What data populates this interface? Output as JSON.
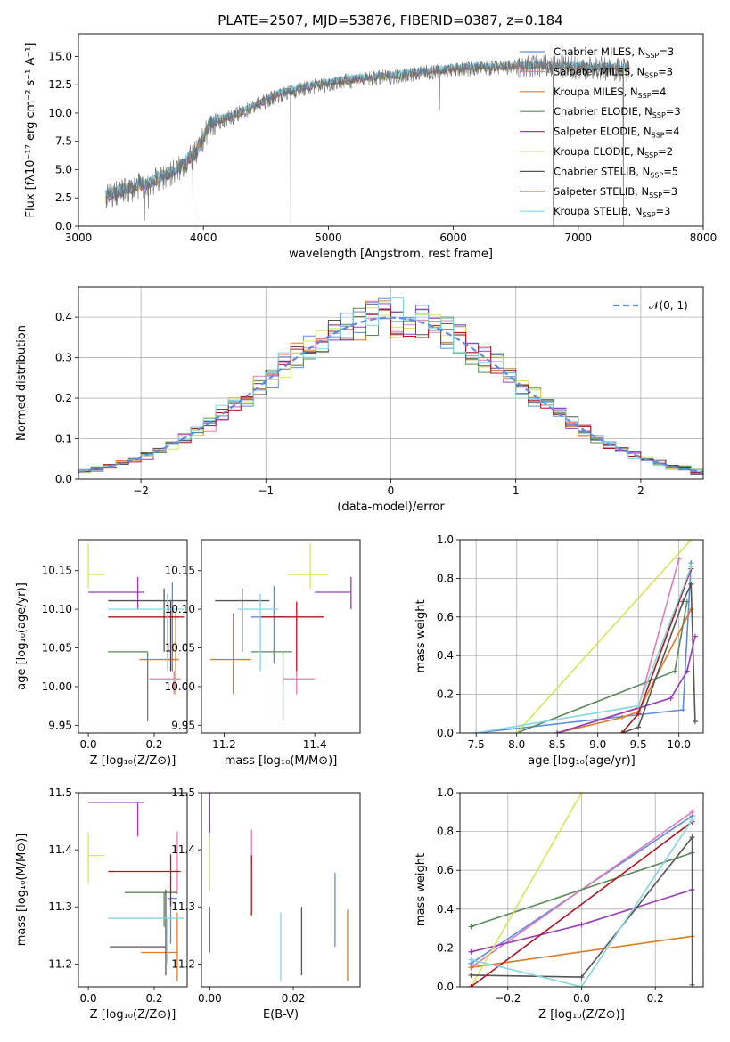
{
  "figure_title": "PLATE=2507, MJD=53876, FIBERID=0387, z=0.184",
  "colors": {
    "Chabrier MILES": "#5b8ee0",
    "Salpeter MILES": "#e37bb8",
    "Kroupa MILES": "#e07b25",
    "Chabrier ELODIE": "#5a8a5a",
    "Salpeter ELODIE": "#9b3bb8",
    "Kroupa ELODIE": "#d4e65a",
    "Chabrier STELIB": "#555555",
    "Salpeter STELIB": "#b0161d",
    "Kroupa STELIB": "#84d6e0"
  },
  "chart_data": [
    {
      "id": "spectrum",
      "type": "line",
      "title": "PLATE=2507, MJD=53876, FIBERID=0387, z=0.184",
      "xlabel": "wavelength [Angstrom, rest frame]",
      "ylabel": "Flux [fλ10⁻¹⁷ erg cm⁻² s⁻¹ A⁻¹]",
      "xlim": [
        3000,
        8000
      ],
      "ylim": [
        0,
        17
      ],
      "xticks": [
        "3000",
        "4000",
        "5000",
        "6000",
        "7000",
        "8000"
      ],
      "yticks": [
        "0.0",
        "2.5",
        "5.0",
        "7.5",
        "10.0",
        "12.5",
        "15.0"
      ],
      "legend": [
        "Chabrier MILES, N_SSP=3",
        "Salpeter MILES, N_SSP=3",
        "Kroupa MILES, N_SSP=4",
        "Chabrier ELODIE, N_SSP=3",
        "Salpeter ELODIE, N_SSP=4",
        "Kroupa ELODIE, N_SSP=2",
        "Chabrier STELIB, N_SSP=5",
        "Salpeter STELIB, N_SSP=3",
        "Kroupa STELIB, N_SSP=3"
      ],
      "legend_items": [
        {
          "model": "Chabrier MILES",
          "label": "Chabrier MILES, N",
          "nssp": "=3"
        },
        {
          "model": "Salpeter MILES",
          "label": "Salpeter MILES, N",
          "nssp": "=3"
        },
        {
          "model": "Kroupa MILES",
          "label": "Kroupa MILES, N",
          "nssp": "=4"
        },
        {
          "model": "Chabrier ELODIE",
          "label": "Chabrier ELODIE, N",
          "nssp": "=3"
        },
        {
          "model": "Salpeter ELODIE",
          "label": "Salpeter ELODIE, N",
          "nssp": "=4"
        },
        {
          "model": "Kroupa ELODIE",
          "label": "Kroupa ELODIE, N",
          "nssp": "=2"
        },
        {
          "model": "Chabrier STELIB",
          "label": "Chabrier STELIB, N",
          "nssp": "=5"
        },
        {
          "model": "Salpeter STELIB",
          "label": "Salpeter STELIB, N",
          "nssp": "=3"
        },
        {
          "model": "Kroupa STELIB",
          "label": "Kroupa STELIB, N",
          "nssp": "=3"
        }
      ],
      "legend_sub": "SSP",
      "legend_placement": "right",
      "continuum": [
        [
          3220,
          2.6
        ],
        [
          3400,
          3.2
        ],
        [
          3600,
          3.9
        ],
        [
          3800,
          5.0
        ],
        [
          3950,
          6.5
        ],
        [
          4050,
          8.9
        ],
        [
          4300,
          10.0
        ],
        [
          4600,
          11.6
        ],
        [
          4900,
          12.4
        ],
        [
          5200,
          12.9
        ],
        [
          5500,
          13.2
        ],
        [
          5800,
          13.6
        ],
        [
          6100,
          13.9
        ],
        [
          6400,
          14.0
        ],
        [
          6700,
          14.1
        ],
        [
          7000,
          14.0
        ],
        [
          7300,
          13.9
        ],
        [
          7410,
          13.8
        ]
      ],
      "data_x_range": [
        3220,
        7410
      ],
      "dips": [
        [
          3530,
          0.5
        ],
        [
          3560,
          1.5
        ],
        [
          3915,
          0.2
        ],
        [
          4700,
          0.4
        ],
        [
          5890,
          10.3
        ],
        [
          6800,
          0.0
        ],
        [
          7360,
          0.0
        ]
      ]
    },
    {
      "id": "residuals",
      "type": "bar",
      "xlabel": "(data-model)/error",
      "ylabel": "Normed distribution",
      "xlim": [
        -2.5,
        2.5
      ],
      "ylim": [
        0,
        0.475
      ],
      "xticks": [
        "−2",
        "−1",
        "0",
        "1",
        "2"
      ],
      "yticks": [
        "0.0",
        "0.1",
        "0.2",
        "0.3",
        "0.4"
      ],
      "grid": true,
      "bin_width": 0.1,
      "reference_curve": "normal(0,1)",
      "legend": [
        "𝒩(0, 1)"
      ],
      "legend_placement": "top-right"
    },
    {
      "id": "age-vs-Z",
      "type": "scatter",
      "xlabel": "Z [log₁₀(Z/Z⊙)]",
      "ylabel": "age  [log₁₀(age/yr)]",
      "xlim": [
        -0.03,
        0.3
      ],
      "ylim": [
        9.94,
        10.19
      ],
      "xticks": [
        "0.0",
        "0.2"
      ],
      "yticks": [
        "9.95",
        "10.00",
        "10.05",
        "10.10",
        "10.15"
      ],
      "points": [
        {
          "model": "Chabrier MILES",
          "x": 0.255,
          "xerr": [
            0.0,
            0.0
          ],
          "y": 10.1,
          "yerr": [
            0.08,
            0.035
          ]
        },
        {
          "model": "Salpeter MILES",
          "x": 0.26,
          "xerr": [
            0.075,
            0.02
          ],
          "y": 10.01,
          "yerr": [
            0.02,
            0.01
          ]
        },
        {
          "model": "Kroupa MILES",
          "x": 0.265,
          "xerr": [
            0.11,
            0.01
          ],
          "y": 10.035,
          "yerr": [
            0.045,
            0.06
          ]
        },
        {
          "model": "Chabrier ELODIE",
          "x": 0.18,
          "xerr": [
            0.12,
            0.0
          ],
          "y": 10.045,
          "yerr": [
            0.09,
            0.0
          ]
        },
        {
          "model": "Salpeter ELODIE",
          "x": 0.15,
          "xerr": [
            0.15,
            0.02
          ],
          "y": 10.122,
          "yerr": [
            0.022,
            0.02
          ]
        },
        {
          "model": "Kroupa ELODIE",
          "x": 0.0,
          "xerr": [
            0.0,
            0.05
          ],
          "y": 10.145,
          "yerr": [
            0.018,
            0.04
          ]
        },
        {
          "model": "Chabrier STELIB",
          "x": 0.23,
          "xerr": [
            0.17,
            0.07
          ],
          "y": 10.111,
          "yerr": [
            0.066,
            0.016
          ]
        },
        {
          "model": "Salpeter STELIB",
          "x": 0.25,
          "xerr": [
            0.19,
            0.04
          ],
          "y": 10.09,
          "yerr": [
            0.07,
            0.02
          ]
        },
        {
          "model": "Kroupa STELIB",
          "x": 0.24,
          "xerr": [
            0.18,
            0.05
          ],
          "y": 10.1,
          "yerr": [
            0.08,
            0.02
          ]
        }
      ]
    },
    {
      "id": "age-vs-mass",
      "type": "scatter",
      "xlabel": "mass [log₁₀(M/M⊙)]",
      "ylabel": "",
      "xlim": [
        11.15,
        11.5
      ],
      "ylim": [
        9.94,
        10.19
      ],
      "xticks": [
        "11.2",
        "11.4"
      ],
      "yticks": [
        "9.95",
        "10.00",
        "10.05",
        "10.10",
        "10.15"
      ],
      "points": [
        {
          "model": "Chabrier MILES",
          "x": 11.31,
          "xerr": [
            0.05,
            0.03
          ],
          "y": 10.09,
          "yerr": [
            0.06,
            0.04
          ]
        },
        {
          "model": "Salpeter MILES",
          "x": 11.36,
          "xerr": [
            0.03,
            0.04
          ],
          "y": 10.01,
          "yerr": [
            0.02,
            0.01
          ]
        },
        {
          "model": "Kroupa MILES",
          "x": 11.22,
          "xerr": [
            0.05,
            0.04
          ],
          "y": 10.035,
          "yerr": [
            0.045,
            0.06
          ]
        },
        {
          "model": "Chabrier ELODIE",
          "x": 11.33,
          "xerr": [
            0.07,
            0.02
          ],
          "y": 10.045,
          "yerr": [
            0.09,
            0.0
          ]
        },
        {
          "model": "Salpeter ELODIE",
          "x": 11.48,
          "xerr": [
            0.08,
            0.0
          ],
          "y": 10.122,
          "yerr": [
            0.022,
            0.02
          ]
        },
        {
          "model": "Kroupa ELODIE",
          "x": 11.39,
          "xerr": [
            0.05,
            0.04
          ],
          "y": 10.145,
          "yerr": [
            0.018,
            0.04
          ]
        },
        {
          "model": "Chabrier STELIB",
          "x": 11.24,
          "xerr": [
            0.06,
            0.06
          ],
          "y": 10.111,
          "yerr": [
            0.066,
            0.016
          ]
        },
        {
          "model": "Salpeter STELIB",
          "x": 11.36,
          "xerr": [
            0.08,
            0.06
          ],
          "y": 10.09,
          "yerr": [
            0.07,
            0.02
          ]
        },
        {
          "model": "Kroupa STELIB",
          "x": 11.28,
          "xerr": [
            0.05,
            0.04
          ],
          "y": 10.1,
          "yerr": [
            0.08,
            0.02
          ]
        }
      ]
    },
    {
      "id": "weight-vs-age",
      "type": "line",
      "xlabel": "age  [log₁₀(age/yr)]",
      "ylabel": "mass weight",
      "xlim": [
        7.3,
        10.3
      ],
      "ylim": [
        0,
        1
      ],
      "xticks": [
        "7.5",
        "8.0",
        "8.5",
        "9.0",
        "9.5",
        "10.0"
      ],
      "yticks": [
        "0.0",
        "0.2",
        "0.4",
        "0.6",
        "0.8",
        "1.0"
      ],
      "grid": true,
      "series": [
        {
          "model": "Chabrier MILES",
          "x": [
            7.5,
            10.05,
            10.15
          ],
          "y": [
            0.0,
            0.12,
            0.88
          ]
        },
        {
          "model": "Salpeter MILES",
          "x": [
            8.5,
            9.5,
            10.0
          ],
          "y": [
            0.0,
            0.13,
            0.9
          ]
        },
        {
          "model": "Kroupa MILES",
          "x": [
            8.5,
            9.3,
            9.5,
            10.15
          ],
          "y": [
            0.0,
            0.08,
            0.11,
            0.64
          ]
        },
        {
          "model": "Chabrier ELODIE",
          "x": [
            8.0,
            9.95,
            10.1
          ],
          "y": [
            0.0,
            0.32,
            0.68
          ]
        },
        {
          "model": "Salpeter ELODIE",
          "x": [
            8.5,
            9.9,
            10.1,
            10.2
          ],
          "y": [
            0.0,
            0.18,
            0.32,
            0.5
          ]
        },
        {
          "model": "Kroupa ELODIE",
          "x": [
            8.0,
            10.15
          ],
          "y": [
            0.0,
            1.0
          ]
        },
        {
          "model": "Chabrier STELIB",
          "x": [
            9.3,
            9.5,
            10.05,
            10.15,
            10.2
          ],
          "y": [
            0.0,
            0.03,
            0.68,
            0.77,
            0.06
          ]
        },
        {
          "model": "Salpeter STELIB",
          "x": [
            9.3,
            9.5,
            10.15
          ],
          "y": [
            0.0,
            0.1,
            0.85
          ]
        },
        {
          "model": "Kroupa STELIB",
          "x": [
            7.5,
            9.5,
            10.15
          ],
          "y": [
            0.0,
            0.14,
            0.86
          ]
        }
      ]
    },
    {
      "id": "mass-vs-Z",
      "type": "scatter",
      "xlabel": "Z [log₁₀(Z/Z⊙)]",
      "ylabel": "mass [log₁₀(M/M⊙)]",
      "xlim": [
        -0.03,
        0.3
      ],
      "ylim": [
        11.16,
        11.5
      ],
      "xticks": [
        "0.0",
        "0.2"
      ],
      "yticks": [
        "11.2",
        "11.3",
        "11.4",
        "11.5"
      ],
      "points": [
        {
          "model": "Chabrier MILES",
          "x": 0.25,
          "xerr": [
            0.01,
            0.02
          ],
          "y": 11.315,
          "yerr": [
            0.08,
            0.0
          ]
        },
        {
          "model": "Salpeter MILES",
          "x": 0.27,
          "xerr": [
            0.02,
            0.0
          ],
          "y": 11.362,
          "yerr": [
            0.04,
            0.07
          ]
        },
        {
          "model": "Kroupa MILES",
          "x": 0.27,
          "xerr": [
            0.11,
            0.0
          ],
          "y": 11.22,
          "yerr": [
            0.05,
            0.07
          ]
        },
        {
          "model": "Chabrier ELODIE",
          "x": 0.23,
          "xerr": [
            0.12,
            0.04
          ],
          "y": 11.325,
          "yerr": [
            0.06,
            0.0
          ]
        },
        {
          "model": "Salpeter ELODIE",
          "x": 0.15,
          "xerr": [
            0.15,
            0.02
          ],
          "y": 11.483,
          "yerr": [
            0.06,
            0.0
          ]
        },
        {
          "model": "Kroupa ELODIE",
          "x": 0.0,
          "xerr": [
            0.0,
            0.05
          ],
          "y": 11.39,
          "yerr": [
            0.05,
            0.04
          ]
        },
        {
          "model": "Chabrier STELIB",
          "x": 0.235,
          "xerr": [
            0.17,
            0.0
          ],
          "y": 11.23,
          "yerr": [
            0.05,
            0.1
          ]
        },
        {
          "model": "Salpeter STELIB",
          "x": 0.25,
          "xerr": [
            0.19,
            0.03
          ],
          "y": 11.362,
          "yerr": [
            0.06,
            0.03
          ]
        },
        {
          "model": "Kroupa STELIB",
          "x": 0.24,
          "xerr": [
            0.18,
            0.05
          ],
          "y": 11.28,
          "yerr": [
            0.08,
            0.0
          ]
        }
      ]
    },
    {
      "id": "mass-vs-ebv",
      "type": "scatter",
      "xlabel": "E(B-V)",
      "ylabel": "",
      "xlim": [
        -0.002,
        0.036
      ],
      "ylim": [
        11.16,
        11.5
      ],
      "xticks": [
        "0.00",
        "0.02"
      ],
      "yticks": [
        "11.2",
        "11.3",
        "11.4",
        "11.5"
      ],
      "points": [
        {
          "model": "Chabrier MILES",
          "x": 0.03,
          "xerr": [
            0,
            0
          ],
          "y": 11.29,
          "yerr": [
            0.06,
            0.07
          ]
        },
        {
          "model": "Salpeter MILES",
          "x": 0.01,
          "xerr": [
            0,
            0
          ],
          "y": 11.4,
          "yerr": [
            0.03,
            0.035
          ]
        },
        {
          "model": "Kroupa MILES",
          "x": 0.033,
          "xerr": [
            0,
            0
          ],
          "y": 11.23,
          "yerr": [
            0.06,
            0.065
          ]
        },
        {
          "model": "Chabrier ELODIE",
          "x": 0.0,
          "xerr": [
            0,
            0
          ],
          "y": 11.3,
          "yerr": [
            0.08,
            0.0
          ]
        },
        {
          "model": "Salpeter ELODIE",
          "x": 0.0,
          "xerr": [
            0,
            0
          ],
          "y": 11.46,
          "yerr": [
            0.04,
            0.04
          ]
        },
        {
          "model": "Kroupa ELODIE",
          "x": 0.0,
          "xerr": [
            0,
            0
          ],
          "y": 11.38,
          "yerr": [
            0.05,
            0.05
          ]
        },
        {
          "model": "Chabrier STELIB",
          "x": 0.022,
          "xerr": [
            0,
            0
          ],
          "y": 11.24,
          "yerr": [
            0.06,
            0.06
          ]
        },
        {
          "model": "Salpeter STELIB",
          "x": 0.01,
          "xerr": [
            0,
            0
          ],
          "y": 11.34,
          "yerr": [
            0.055,
            0.05
          ]
        },
        {
          "model": "Kroupa STELIB",
          "x": 0.017,
          "xerr": [
            0,
            0
          ],
          "y": 11.23,
          "yerr": [
            0.06,
            0.06
          ]
        }
      ]
    },
    {
      "id": "weight-vs-Z",
      "type": "line",
      "xlabel": "Z [log₁₀(Z/Z⊙)]",
      "ylabel": "mass weight",
      "xlim": [
        -0.33,
        0.33
      ],
      "ylim": [
        0,
        1
      ],
      "xticks": [
        "−0.2",
        "0.0",
        "0.2"
      ],
      "yticks": [
        "0.0",
        "0.2",
        "0.4",
        "0.6",
        "0.8",
        "1.0"
      ],
      "grid": true,
      "series": [
        {
          "model": "Chabrier MILES",
          "x": [
            -0.3,
            0.3
          ],
          "y": [
            0.12,
            0.88
          ]
        },
        {
          "model": "Salpeter MILES",
          "x": [
            -0.3,
            0.3
          ],
          "y": [
            0.1,
            0.9
          ]
        },
        {
          "model": "Kroupa MILES",
          "x": [
            -0.3,
            0.3
          ],
          "y": [
            0.1,
            0.26
          ]
        },
        {
          "model": "Chabrier ELODIE",
          "x": [
            -0.3,
            0.3
          ],
          "y": [
            0.31,
            0.69
          ]
        },
        {
          "model": "Salpeter ELODIE",
          "x": [
            -0.3,
            0.0,
            0.3
          ],
          "y": [
            0.18,
            0.32,
            0.5
          ]
        },
        {
          "model": "Kroupa ELODIE",
          "x": [
            -0.3,
            0.0
          ],
          "y": [
            0.0,
            1.0
          ]
        },
        {
          "model": "Chabrier STELIB",
          "x": [
            -0.3,
            0.0,
            0.3,
            0.3
          ],
          "y": [
            0.06,
            0.05,
            0.77,
            0.01
          ]
        },
        {
          "model": "Salpeter STELIB",
          "x": [
            -0.3,
            0.3
          ],
          "y": [
            0.0,
            0.85
          ]
        },
        {
          "model": "Kroupa STELIB",
          "x": [
            -0.3,
            0.0,
            0.3
          ],
          "y": [
            0.14,
            0.0,
            0.86
          ]
        }
      ]
    }
  ]
}
